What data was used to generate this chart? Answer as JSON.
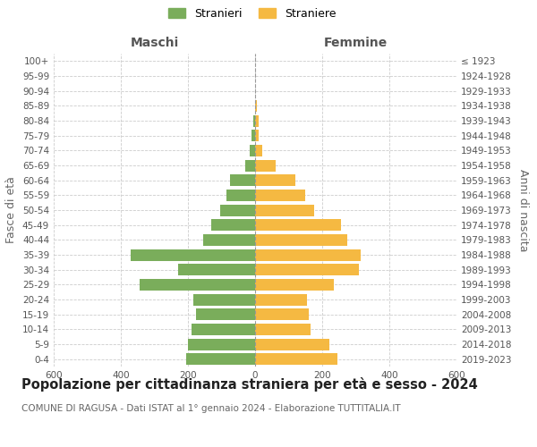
{
  "age_groups": [
    "0-4",
    "5-9",
    "10-14",
    "15-19",
    "20-24",
    "25-29",
    "30-34",
    "35-39",
    "40-44",
    "45-49",
    "50-54",
    "55-59",
    "60-64",
    "65-69",
    "70-74",
    "75-79",
    "80-84",
    "85-89",
    "90-94",
    "95-99",
    "100+"
  ],
  "birth_years": [
    "2019-2023",
    "2014-2018",
    "2009-2013",
    "2004-2008",
    "1999-2003",
    "1994-1998",
    "1989-1993",
    "1984-1988",
    "1979-1983",
    "1974-1978",
    "1969-1973",
    "1964-1968",
    "1959-1963",
    "1954-1958",
    "1949-1953",
    "1944-1948",
    "1939-1943",
    "1934-1938",
    "1929-1933",
    "1924-1928",
    "≤ 1923"
  ],
  "males": [
    205,
    200,
    190,
    175,
    185,
    345,
    230,
    370,
    155,
    130,
    105,
    85,
    75,
    30,
    15,
    10,
    5,
    0,
    0,
    0,
    0
  ],
  "females": [
    245,
    220,
    165,
    160,
    155,
    235,
    310,
    315,
    275,
    255,
    175,
    150,
    120,
    60,
    20,
    10,
    10,
    5,
    0,
    0,
    0
  ],
  "male_color": "#7aad5b",
  "female_color": "#f5b942",
  "background_color": "#ffffff",
  "grid_color": "#cccccc",
  "title": "Popolazione per cittadinanza straniera per età e sesso - 2024",
  "subtitle": "COMUNE DI RAGUSA - Dati ISTAT al 1° gennaio 2024 - Elaborazione TUTTITALIA.IT",
  "xlabel_left": "Maschi",
  "xlabel_right": "Femmine",
  "ylabel_left": "Fasce di età",
  "ylabel_right": "Anni di nascita",
  "legend_male": "Stranieri",
  "legend_female": "Straniere",
  "xlim": 600,
  "tick_fontsize": 7.5,
  "label_fontsize": 9,
  "title_fontsize": 10.5,
  "subtitle_fontsize": 7.5
}
